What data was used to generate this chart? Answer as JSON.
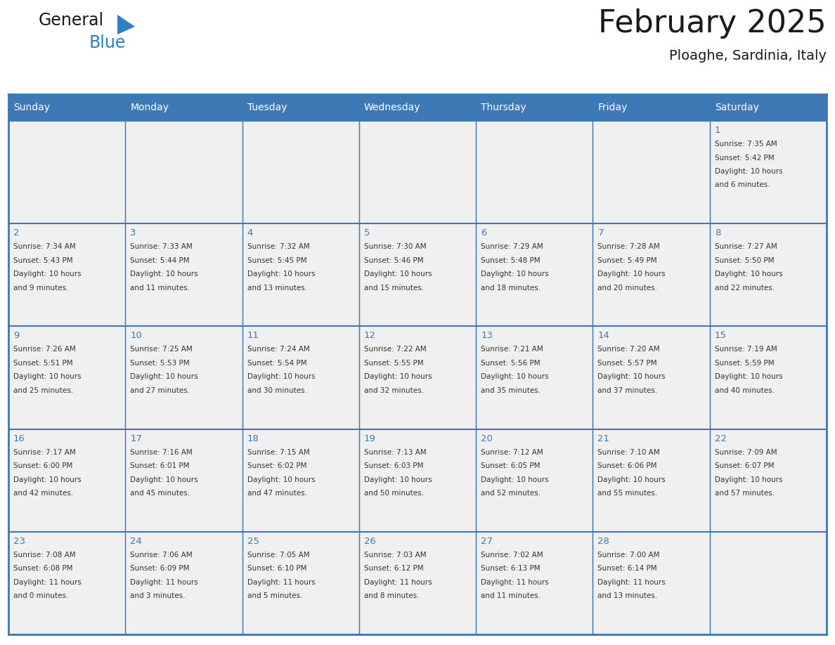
{
  "title": "February 2025",
  "subtitle": "Ploaghe, Sardinia, Italy",
  "header_color": "#3D7AB5",
  "header_text_color": "#FFFFFF",
  "cell_bg_color": "#F0F0F0",
  "text_color": "#333333",
  "day_number_color": "#3D7AB5",
  "border_color": "#3D7AB5",
  "days_of_week": [
    "Sunday",
    "Monday",
    "Tuesday",
    "Wednesday",
    "Thursday",
    "Friday",
    "Saturday"
  ],
  "logo_general_color": "#1a1a1a",
  "logo_blue_color": "#2E7FC1",
  "logo_triangle_color": "#2E7FC1",
  "title_color": "#1a1a1a",
  "weeks": [
    [
      {
        "day": null,
        "info": null
      },
      {
        "day": null,
        "info": null
      },
      {
        "day": null,
        "info": null
      },
      {
        "day": null,
        "info": null
      },
      {
        "day": null,
        "info": null
      },
      {
        "day": null,
        "info": null
      },
      {
        "day": 1,
        "info": "Sunrise: 7:35 AM\nSunset: 5:42 PM\nDaylight: 10 hours\nand 6 minutes."
      }
    ],
    [
      {
        "day": 2,
        "info": "Sunrise: 7:34 AM\nSunset: 5:43 PM\nDaylight: 10 hours\nand 9 minutes."
      },
      {
        "day": 3,
        "info": "Sunrise: 7:33 AM\nSunset: 5:44 PM\nDaylight: 10 hours\nand 11 minutes."
      },
      {
        "day": 4,
        "info": "Sunrise: 7:32 AM\nSunset: 5:45 PM\nDaylight: 10 hours\nand 13 minutes."
      },
      {
        "day": 5,
        "info": "Sunrise: 7:30 AM\nSunset: 5:46 PM\nDaylight: 10 hours\nand 15 minutes."
      },
      {
        "day": 6,
        "info": "Sunrise: 7:29 AM\nSunset: 5:48 PM\nDaylight: 10 hours\nand 18 minutes."
      },
      {
        "day": 7,
        "info": "Sunrise: 7:28 AM\nSunset: 5:49 PM\nDaylight: 10 hours\nand 20 minutes."
      },
      {
        "day": 8,
        "info": "Sunrise: 7:27 AM\nSunset: 5:50 PM\nDaylight: 10 hours\nand 22 minutes."
      }
    ],
    [
      {
        "day": 9,
        "info": "Sunrise: 7:26 AM\nSunset: 5:51 PM\nDaylight: 10 hours\nand 25 minutes."
      },
      {
        "day": 10,
        "info": "Sunrise: 7:25 AM\nSunset: 5:53 PM\nDaylight: 10 hours\nand 27 minutes."
      },
      {
        "day": 11,
        "info": "Sunrise: 7:24 AM\nSunset: 5:54 PM\nDaylight: 10 hours\nand 30 minutes."
      },
      {
        "day": 12,
        "info": "Sunrise: 7:22 AM\nSunset: 5:55 PM\nDaylight: 10 hours\nand 32 minutes."
      },
      {
        "day": 13,
        "info": "Sunrise: 7:21 AM\nSunset: 5:56 PM\nDaylight: 10 hours\nand 35 minutes."
      },
      {
        "day": 14,
        "info": "Sunrise: 7:20 AM\nSunset: 5:57 PM\nDaylight: 10 hours\nand 37 minutes."
      },
      {
        "day": 15,
        "info": "Sunrise: 7:19 AM\nSunset: 5:59 PM\nDaylight: 10 hours\nand 40 minutes."
      }
    ],
    [
      {
        "day": 16,
        "info": "Sunrise: 7:17 AM\nSunset: 6:00 PM\nDaylight: 10 hours\nand 42 minutes."
      },
      {
        "day": 17,
        "info": "Sunrise: 7:16 AM\nSunset: 6:01 PM\nDaylight: 10 hours\nand 45 minutes."
      },
      {
        "day": 18,
        "info": "Sunrise: 7:15 AM\nSunset: 6:02 PM\nDaylight: 10 hours\nand 47 minutes."
      },
      {
        "day": 19,
        "info": "Sunrise: 7:13 AM\nSunset: 6:03 PM\nDaylight: 10 hours\nand 50 minutes."
      },
      {
        "day": 20,
        "info": "Sunrise: 7:12 AM\nSunset: 6:05 PM\nDaylight: 10 hours\nand 52 minutes."
      },
      {
        "day": 21,
        "info": "Sunrise: 7:10 AM\nSunset: 6:06 PM\nDaylight: 10 hours\nand 55 minutes."
      },
      {
        "day": 22,
        "info": "Sunrise: 7:09 AM\nSunset: 6:07 PM\nDaylight: 10 hours\nand 57 minutes."
      }
    ],
    [
      {
        "day": 23,
        "info": "Sunrise: 7:08 AM\nSunset: 6:08 PM\nDaylight: 11 hours\nand 0 minutes."
      },
      {
        "day": 24,
        "info": "Sunrise: 7:06 AM\nSunset: 6:09 PM\nDaylight: 11 hours\nand 3 minutes."
      },
      {
        "day": 25,
        "info": "Sunrise: 7:05 AM\nSunset: 6:10 PM\nDaylight: 11 hours\nand 5 minutes."
      },
      {
        "day": 26,
        "info": "Sunrise: 7:03 AM\nSunset: 6:12 PM\nDaylight: 11 hours\nand 8 minutes."
      },
      {
        "day": 27,
        "info": "Sunrise: 7:02 AM\nSunset: 6:13 PM\nDaylight: 11 hours\nand 11 minutes."
      },
      {
        "day": 28,
        "info": "Sunrise: 7:00 AM\nSunset: 6:14 PM\nDaylight: 11 hours\nand 13 minutes."
      },
      {
        "day": null,
        "info": null
      }
    ]
  ],
  "figsize": [
    11.88,
    9.18
  ],
  "dpi": 100
}
